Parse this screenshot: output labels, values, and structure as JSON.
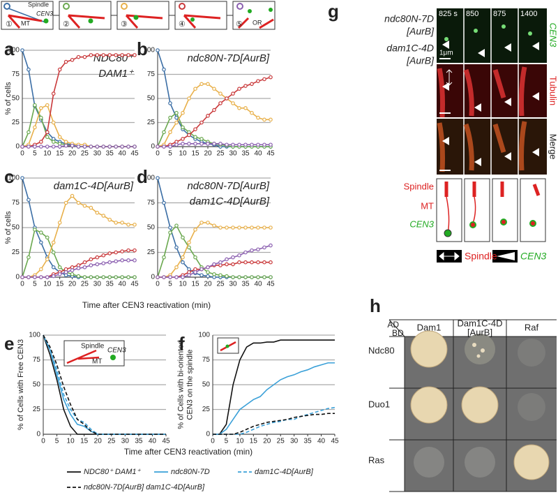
{
  "chart_data": [
    {
      "type": "line",
      "panel": "a",
      "ylabel_lines": [
        "% of cells"
      ],
      "annotation_lines": [
        "NDC80⁺",
        "DAM1⁺"
      ],
      "markers": true,
      "grid": true,
      "xlim": [
        0,
        45
      ],
      "xticks": [
        0,
        5,
        10,
        15,
        20,
        25,
        30,
        35,
        40,
        45
      ],
      "ylim": [
        0,
        100
      ],
      "yticks": [
        0,
        25,
        50,
        75,
        100
      ],
      "x": [
        0,
        2.5,
        5,
        7.5,
        10,
        12.5,
        15,
        17.5,
        20,
        22.5,
        25,
        27.5,
        30,
        32.5,
        35,
        37.5,
        40,
        42.5,
        45
      ],
      "series": [
        {
          "color": "#3b6ea5",
          "values": [
            100,
            80,
            42,
            28,
            15,
            8,
            5,
            3,
            2,
            0,
            0,
            0,
            0,
            0,
            0,
            0,
            0,
            0,
            0
          ]
        },
        {
          "color": "#6aa84f",
          "values": [
            0,
            15,
            43,
            30,
            10,
            5,
            3,
            2,
            1,
            0,
            0,
            0,
            0,
            0,
            0,
            0,
            0,
            0,
            0
          ]
        },
        {
          "color": "#e8b04a",
          "values": [
            0,
            2,
            20,
            40,
            43,
            25,
            10,
            5,
            3,
            2,
            2,
            0,
            0,
            0,
            0,
            0,
            0,
            0,
            0
          ]
        },
        {
          "color": "#c9383a",
          "values": [
            0,
            0,
            2,
            5,
            15,
            55,
            80,
            88,
            90,
            93,
            93,
            95,
            95,
            95,
            95,
            95,
            95,
            95,
            95
          ]
        },
        {
          "color": "#8b5fb0",
          "values": [
            0,
            0,
            0,
            0,
            0,
            0,
            0,
            1,
            1,
            0,
            0,
            0,
            0,
            0,
            0,
            0,
            0,
            0,
            0
          ]
        }
      ]
    },
    {
      "type": "line",
      "panel": "b",
      "annotation_lines": [
        "ndc80N-7D[AurB]"
      ],
      "markers": true,
      "grid": true,
      "xlim": [
        0,
        45
      ],
      "xticks": [
        0,
        5,
        10,
        15,
        20,
        25,
        30,
        35,
        40,
        45
      ],
      "ylim": [
        0,
        100
      ],
      "yticks": [
        0,
        25,
        50,
        75,
        100
      ],
      "x": [
        0,
        2.5,
        5,
        7.5,
        10,
        12.5,
        15,
        17.5,
        20,
        22.5,
        25,
        27.5,
        30,
        32.5,
        35,
        37.5,
        40,
        42.5,
        45
      ],
      "series": [
        {
          "color": "#3b6ea5",
          "values": [
            100,
            80,
            45,
            30,
            18,
            12,
            8,
            5,
            3,
            2,
            0,
            0,
            0,
            0,
            0,
            0,
            0,
            0,
            0
          ]
        },
        {
          "color": "#6aa84f",
          "values": [
            0,
            15,
            30,
            35,
            20,
            15,
            10,
            8,
            5,
            3,
            2,
            1,
            0,
            0,
            0,
            0,
            0,
            0,
            0
          ]
        },
        {
          "color": "#e8b04a",
          "values": [
            0,
            2,
            15,
            25,
            35,
            50,
            60,
            65,
            65,
            60,
            55,
            50,
            45,
            40,
            40,
            35,
            30,
            28,
            28
          ]
        },
        {
          "color": "#c9383a",
          "values": [
            0,
            0,
            2,
            5,
            8,
            12,
            18,
            25,
            32,
            38,
            45,
            50,
            55,
            60,
            63,
            65,
            68,
            70,
            72
          ]
        },
        {
          "color": "#8b5fb0",
          "values": [
            0,
            0,
            0,
            2,
            3,
            3,
            3,
            3,
            3,
            3,
            3,
            2,
            2,
            2,
            2,
            2,
            2,
            2,
            2
          ]
        }
      ]
    },
    {
      "type": "line",
      "panel": "c",
      "ylabel_lines": [
        "% of cells"
      ],
      "annotation_lines": [
        "dam1C-4D[AurB]"
      ],
      "xlabel": "Time after CEN3 reactivation (min)",
      "markers": true,
      "grid": true,
      "xlim": [
        0,
        45
      ],
      "xticks": [
        0,
        5,
        10,
        15,
        20,
        25,
        30,
        35,
        40,
        45
      ],
      "ylim": [
        0,
        100
      ],
      "yticks": [
        0,
        25,
        50,
        75,
        100
      ],
      "x": [
        0,
        2.5,
        5,
        7.5,
        10,
        12.5,
        15,
        17.5,
        20,
        22.5,
        25,
        27.5,
        30,
        32.5,
        35,
        37.5,
        40,
        42.5,
        45
      ],
      "series": [
        {
          "color": "#3b6ea5",
          "values": [
            100,
            78,
            50,
            35,
            20,
            10,
            5,
            2,
            1,
            0,
            0,
            0,
            0,
            0,
            0,
            0,
            0,
            0,
            0
          ]
        },
        {
          "color": "#6aa84f",
          "values": [
            0,
            20,
            48,
            45,
            40,
            25,
            10,
            5,
            3,
            1,
            0,
            0,
            0,
            0,
            0,
            0,
            0,
            0,
            0
          ]
        },
        {
          "color": "#e8b04a",
          "values": [
            0,
            0,
            2,
            8,
            18,
            35,
            55,
            75,
            82,
            75,
            72,
            70,
            65,
            62,
            58,
            55,
            55,
            53,
            53
          ]
        },
        {
          "color": "#c9383a",
          "values": [
            0,
            0,
            0,
            0,
            0,
            3,
            5,
            8,
            10,
            12,
            15,
            18,
            20,
            22,
            24,
            25,
            26,
            27,
            27
          ]
        },
        {
          "color": "#8b5fb0",
          "values": [
            0,
            0,
            0,
            0,
            0,
            1,
            3,
            5,
            7,
            9,
            10,
            12,
            13,
            14,
            15,
            16,
            17,
            17,
            17
          ]
        }
      ]
    },
    {
      "type": "line",
      "panel": "d",
      "annotation_lines": [
        "ndc80N-7D[AurB]",
        "dam1C-4D[AurB]"
      ],
      "markers": true,
      "grid": true,
      "xlim": [
        0,
        45
      ],
      "xticks": [
        0,
        5,
        10,
        15,
        20,
        25,
        30,
        35,
        40,
        45
      ],
      "ylim": [
        0,
        100
      ],
      "yticks": [
        0,
        25,
        50,
        75,
        100
      ],
      "x": [
        0,
        2.5,
        5,
        7.5,
        10,
        12.5,
        15,
        17.5,
        20,
        22.5,
        25,
        27.5,
        30,
        32.5,
        35,
        37.5,
        40,
        42.5,
        45
      ],
      "series": [
        {
          "color": "#3b6ea5",
          "values": [
            100,
            75,
            50,
            30,
            15,
            8,
            4,
            2,
            1,
            0,
            0,
            0,
            0,
            0,
            0,
            0,
            0,
            0,
            0
          ]
        },
        {
          "color": "#6aa84f",
          "values": [
            0,
            20,
            45,
            52,
            40,
            30,
            20,
            10,
            5,
            3,
            2,
            1,
            0,
            0,
            0,
            0,
            0,
            0,
            0
          ]
        },
        {
          "color": "#e8b04a",
          "values": [
            0,
            0,
            2,
            10,
            20,
            35,
            48,
            55,
            55,
            52,
            50,
            50,
            50,
            50,
            50,
            50,
            50,
            50,
            50
          ]
        },
        {
          "color": "#c9383a",
          "values": [
            0,
            0,
            0,
            0,
            2,
            5,
            8,
            8,
            10,
            12,
            12,
            13,
            13,
            15,
            15,
            15,
            15,
            15,
            15
          ]
        },
        {
          "color": "#8b5fb0",
          "values": [
            0,
            0,
            0,
            0,
            0,
            2,
            5,
            8,
            10,
            13,
            15,
            18,
            20,
            22,
            25,
            27,
            28,
            30,
            32
          ]
        }
      ]
    },
    {
      "type": "line",
      "panel": "e",
      "ylabel_lines": [
        "% of Cells with Free CEN3"
      ],
      "xlabel": "Time after CEN3 reactivation (min)",
      "inset_labels": [
        "Spindle",
        "CEN3",
        "MT"
      ],
      "markers": false,
      "grid": true,
      "xlim": [
        0,
        45
      ],
      "xticks": [
        0,
        5,
        10,
        15,
        20,
        25,
        30,
        35,
        40,
        45
      ],
      "ylim": [
        0,
        100
      ],
      "yticks": [
        0,
        25,
        50,
        75,
        100
      ],
      "x": [
        0,
        2.5,
        5,
        7.5,
        10,
        12.5,
        15,
        17.5,
        20,
        22.5,
        25,
        27.5,
        30,
        32.5,
        35,
        37.5,
        40,
        42.5,
        45
      ],
      "series": [
        {
          "name": "NDC80⁺ DAM1⁺",
          "color": "#111111",
          "dash": false,
          "values": [
            100,
            80,
            55,
            25,
            8,
            0,
            0,
            0,
            0,
            0,
            0,
            0,
            0,
            0,
            0,
            0,
            0,
            0,
            0
          ]
        },
        {
          "name": "ndc80N-7D",
          "color": "#3aa0d8",
          "dash": false,
          "values": [
            100,
            85,
            60,
            35,
            20,
            10,
            8,
            3,
            0,
            0,
            0,
            0,
            0,
            0,
            0,
            0,
            0,
            0,
            0
          ]
        },
        {
          "name": "dam1C-4D[AurB]",
          "color": "#3aa0d8",
          "dash": true,
          "values": [
            100,
            85,
            65,
            40,
            25,
            15,
            12,
            5,
            0,
            0,
            0,
            0,
            0,
            0,
            0,
            0,
            0,
            0,
            0
          ]
        },
        {
          "name": "ndc80N-7D[AurB] dam1C-4D[AurB]",
          "color": "#111111",
          "dash": true,
          "values": [
            100,
            88,
            70,
            48,
            30,
            15,
            10,
            3,
            0,
            0,
            0,
            0,
            0,
            0,
            0,
            0,
            0,
            0,
            0
          ]
        }
      ]
    },
    {
      "type": "line",
      "panel": "f",
      "ylabel_lines": [
        "% of Cells with bi-oriented",
        "CEN3 on the spindle"
      ],
      "markers": false,
      "grid": true,
      "xlim": [
        0,
        45
      ],
      "xticks": [
        0,
        5,
        10,
        15,
        20,
        25,
        30,
        35,
        40,
        45
      ],
      "ylim": [
        0,
        100
      ],
      "yticks": [
        0,
        25,
        50,
        75,
        100
      ],
      "x": [
        0,
        2.5,
        5,
        7.5,
        10,
        12.5,
        15,
        17.5,
        20,
        22.5,
        25,
        27.5,
        30,
        32.5,
        35,
        37.5,
        40,
        42.5,
        45
      ],
      "series": [
        {
          "color": "#111111",
          "dash": false,
          "values": [
            0,
            0,
            10,
            50,
            75,
            88,
            92,
            92,
            93,
            93,
            95,
            95,
            95,
            95,
            95,
            95,
            95,
            95,
            95
          ]
        },
        {
          "color": "#3aa0d8",
          "dash": false,
          "values": [
            0,
            0,
            5,
            15,
            25,
            30,
            35,
            38,
            45,
            50,
            55,
            58,
            60,
            63,
            65,
            68,
            70,
            72,
            72
          ]
        },
        {
          "color": "#3aa0d8",
          "dash": true,
          "values": [
            0,
            0,
            0,
            0,
            0,
            2,
            5,
            8,
            10,
            12,
            13,
            15,
            15,
            18,
            20,
            22,
            24,
            26,
            27
          ]
        },
        {
          "color": "#111111",
          "dash": true,
          "values": [
            0,
            0,
            0,
            0,
            2,
            5,
            8,
            10,
            12,
            13,
            14,
            15,
            17,
            18,
            19,
            20,
            20,
            21,
            21
          ]
        }
      ]
    }
  ],
  "schematic": {
    "steps": [
      "①",
      "②",
      "③",
      "④",
      "⑤"
    ],
    "spindle": "Spindle",
    "mt": "MT",
    "cen3": "CEN3",
    "or": "OR"
  },
  "panel_g": {
    "panel": "g",
    "times": [
      "825 s",
      "850",
      "875",
      "1400"
    ],
    "strains": [
      [
        "ndc80N-7D",
        "[AurB]"
      ],
      [
        "dam1C-4D",
        "[AurB]"
      ]
    ],
    "scale": "1μm",
    "channels": [
      "CEN3",
      "Tubulin",
      "Merge"
    ],
    "diagram_labels": [
      "Spindle",
      "MT",
      "CEN3"
    ],
    "key": [
      "Spindle",
      "CEN3"
    ]
  },
  "panel_h": {
    "panel": "h",
    "ad": "AD",
    "bd": "BD",
    "columns": [
      [
        "Dam1"
      ],
      [
        "Dam1C-4D",
        "[AurB]"
      ],
      [
        "Raf"
      ]
    ],
    "rows": [
      "Ndc80",
      "Duo1",
      "Ras"
    ]
  }
}
